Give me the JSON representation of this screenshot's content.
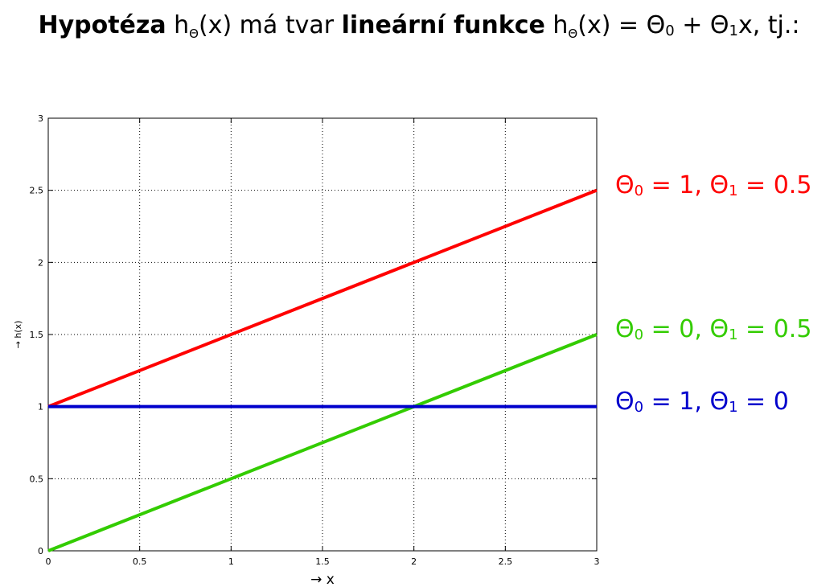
{
  "title": {
    "w1": "Hypotéza",
    "w2": " h",
    "sub1": "Θ",
    "w3": "(x) má tvar ",
    "w4": "lineární funkce",
    "w5": " h",
    "sub2": "Θ",
    "w6": "(x) = Θ",
    "s0": "0",
    "w7": " + Θ",
    "s1": "1",
    "w8": "x, tj.:"
  },
  "chart_data": {
    "type": "line",
    "xlabel": "→ x",
    "ylabel": "→ h(x)",
    "xlim": [
      0,
      3
    ],
    "ylim": [
      0,
      3
    ],
    "x_ticks": [
      "0",
      "0.5",
      "1",
      "1.5",
      "2",
      "2.5",
      "3"
    ],
    "y_ticks": [
      "0",
      "0.5",
      "1",
      "1.5",
      "2",
      "2.5",
      "3"
    ],
    "grid": true,
    "series": [
      {
        "theta0": 1,
        "theta1": 0.5,
        "x": [
          0,
          3
        ],
        "y": [
          1,
          2.5
        ],
        "color": "#ff0000",
        "label": {
          "a": "Θ",
          "s0": "0",
          "b": " = 1, Θ",
          "s1": "1",
          "c": " = 0.5"
        }
      },
      {
        "theta0": 0,
        "theta1": 0.5,
        "x": [
          0,
          3
        ],
        "y": [
          0,
          1.5
        ],
        "color": "#33cc00",
        "label": {
          "a": "Θ",
          "s0": "0",
          "b": " = 0, Θ",
          "s1": "1",
          "c": " = 0.5"
        }
      },
      {
        "theta0": 1,
        "theta1": 0,
        "x": [
          0,
          3
        ],
        "y": [
          1,
          1
        ],
        "color": "#0000cc",
        "label": {
          "a": "Θ",
          "s0": "0",
          "b": " = 1, Θ",
          "s1": "1",
          "c": " = 0"
        }
      }
    ]
  }
}
